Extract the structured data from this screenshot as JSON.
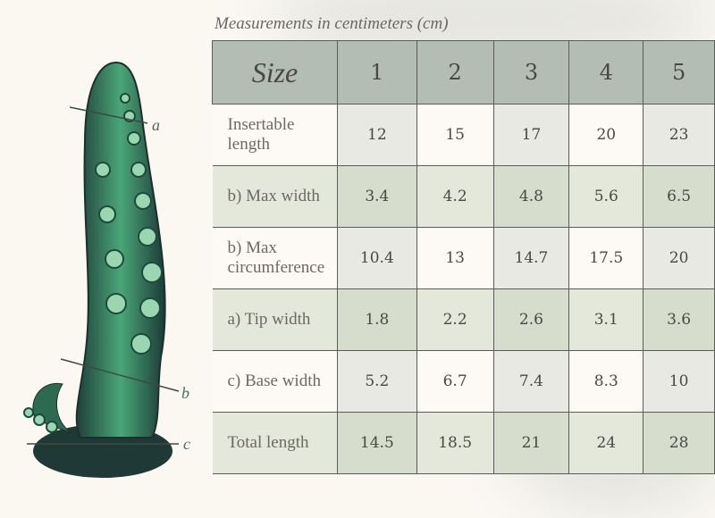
{
  "caption": "Measurements in centimeters (cm)",
  "table": {
    "header": [
      "Size",
      "1",
      "2",
      "3",
      "4",
      "5"
    ],
    "rows": [
      {
        "label": "Insertable length",
        "values": [
          "12",
          "15",
          "17",
          "20",
          "23"
        ]
      },
      {
        "label": "b) Max width",
        "values": [
          "3.4",
          "4.2",
          "4.8",
          "5.6",
          "6.5"
        ]
      },
      {
        "label": "b) Max circumference",
        "values": [
          "10.4",
          "13",
          "14.7",
          "17.5",
          "20"
        ]
      },
      {
        "label": "a) Tip width",
        "values": [
          "1.8",
          "2.2",
          "2.6",
          "3.1",
          "3.6"
        ]
      },
      {
        "label": "c) Base width",
        "values": [
          "5.2",
          "6.7",
          "7.4",
          "8.3",
          "10"
        ]
      },
      {
        "label": "Total length",
        "values": [
          "14.5",
          "18.5",
          "21",
          "24",
          "28"
        ]
      }
    ]
  },
  "illustration": {
    "markers": [
      "a",
      "b",
      "c"
    ]
  },
  "colors": {
    "header": "#b3bdb4",
    "product_green": "#2f7a5a",
    "marker": "#3b4a44"
  }
}
